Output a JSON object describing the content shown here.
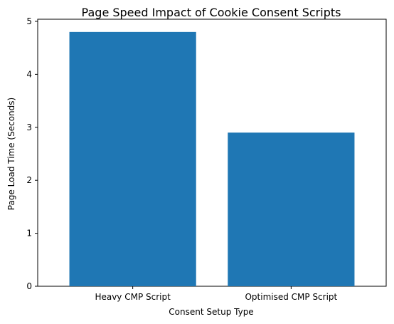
{
  "chart_data": {
    "type": "bar",
    "title": "Page Speed Impact of Cookie Consent Scripts",
    "xlabel": "Consent Setup Type",
    "ylabel": "Page Load Time (Seconds)",
    "categories": [
      "Heavy CMP Script",
      "Optimised CMP Script"
    ],
    "values": [
      4.8,
      2.9
    ],
    "ylim": [
      0,
      5.04
    ],
    "yticks": [
      "0",
      "1",
      "2",
      "3",
      "4",
      "5"
    ],
    "bar_color": "#1f77b4",
    "grid": false
  }
}
